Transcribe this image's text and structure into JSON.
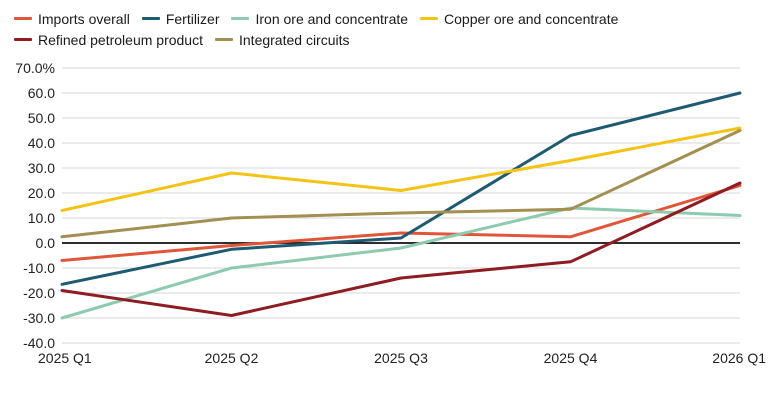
{
  "chart_data": {
    "type": "line",
    "title": "",
    "xlabel": "",
    "ylabel": "",
    "categories": [
      "2025 Q1",
      "2025 Q2",
      "2025 Q3",
      "2025 Q4",
      "2026 Q1"
    ],
    "y_ticks": [
      70,
      60,
      50,
      40,
      30,
      20,
      10,
      0,
      -10,
      -20,
      -30,
      -40
    ],
    "y_tick_labels": [
      "70.0%",
      "60.0",
      "50.0",
      "40.0",
      "30.0",
      "20.0",
      "10.0",
      "0.0",
      "-10.0",
      "-20.0",
      "-30.0",
      "-40.0"
    ],
    "ylim": [
      -40,
      70
    ],
    "grid": "horizontal",
    "zero_line": true,
    "legend_position": "top-left",
    "series": [
      {
        "name": "Imports overall",
        "color": "#e05638",
        "values": [
          -7,
          -1,
          4,
          2.5,
          23
        ]
      },
      {
        "name": "Fertilizer",
        "color": "#1e5a72",
        "values": [
          -16.5,
          -2.5,
          2,
          43,
          60
        ]
      },
      {
        "name": "Iron ore and concentrate",
        "color": "#8ecaaf",
        "values": [
          -30,
          -10,
          -2,
          14,
          11
        ]
      },
      {
        "name": "Copper ore and concentrate",
        "color": "#f5c316",
        "values": [
          13,
          28,
          21,
          33,
          46
        ]
      },
      {
        "name": "Refined petroleum product",
        "color": "#8e1c22",
        "values": [
          -19,
          -29,
          -14,
          -7.5,
          24
        ]
      },
      {
        "name": "Integrated circuits",
        "color": "#a38f52",
        "values": [
          2.5,
          10,
          12,
          13.5,
          45
        ]
      }
    ],
    "legend_rows": [
      [
        0,
        1,
        2,
        3
      ],
      [
        4,
        5
      ]
    ]
  }
}
